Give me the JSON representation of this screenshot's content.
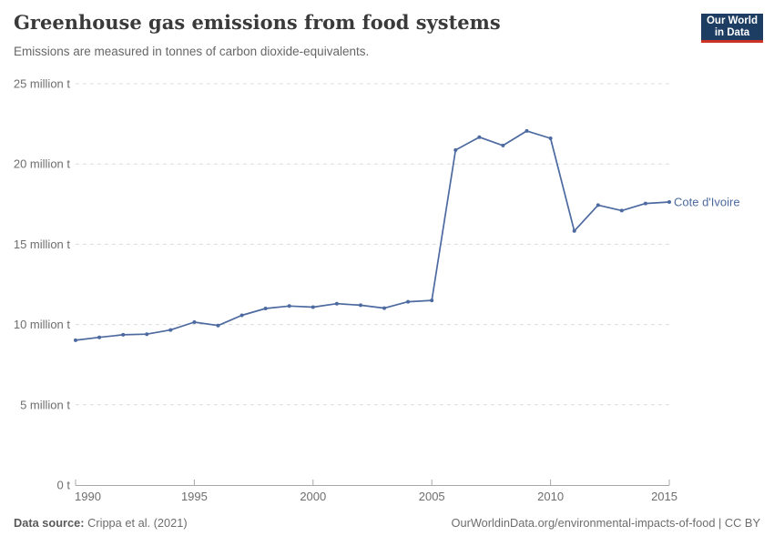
{
  "header": {
    "title": "Greenhouse gas emissions from food systems",
    "subtitle": "Emissions are measured in tonnes of carbon dioxide-equivalents.",
    "logo": {
      "line1": "Our World",
      "line2": "in Data",
      "bg_color": "#1d3d63",
      "accent_color": "#cd3226"
    }
  },
  "chart_data": {
    "type": "line",
    "title": "Greenhouse gas emissions from food systems",
    "xlabel": "",
    "ylabel": "",
    "unit": "tonnes of carbon dioxide-equivalents",
    "xlim": [
      1990,
      2015
    ],
    "ylim": [
      0,
      25
    ],
    "grid": "horizontal-dashed",
    "legend_position": "end-of-line-label",
    "xticks": [
      1990,
      1995,
      2000,
      2005,
      2010,
      2015
    ],
    "yticks": [
      {
        "value": 0,
        "label": "0 t"
      },
      {
        "value": 5,
        "label": "5 million t"
      },
      {
        "value": 10,
        "label": "10 million t"
      },
      {
        "value": 15,
        "label": "15 million t"
      },
      {
        "value": 20,
        "label": "20 million t"
      },
      {
        "value": 25,
        "label": "25 million t"
      }
    ],
    "series": [
      {
        "name": "Cote d'Ivoire",
        "color": "#4c69a0",
        "x": [
          1990,
          1991,
          1992,
          1993,
          1994,
          1995,
          1996,
          1997,
          1998,
          1999,
          2000,
          2001,
          2002,
          2003,
          2004,
          2005,
          2006,
          2007,
          2008,
          2009,
          2010,
          2011,
          2012,
          2013,
          2014,
          2015
        ],
        "values": [
          9.02,
          9.2,
          9.36,
          9.4,
          9.66,
          10.15,
          9.94,
          10.57,
          11.0,
          11.15,
          11.08,
          11.3,
          11.2,
          11.02,
          11.42,
          11.5,
          20.87,
          21.67,
          21.15,
          22.06,
          21.6,
          15.83,
          17.44,
          17.1,
          17.54,
          17.63
        ]
      }
    ]
  },
  "footer": {
    "source_prefix": "Data source:",
    "source": "Crippa et al. (2021)",
    "credit": "OurWorldinData.org/environmental-impacts-of-food | CC BY"
  },
  "colors": {
    "title_text": "#3a3a3a",
    "subtitle_text": "#666666",
    "tick_text": "#6e6e6e",
    "gridline": "#dcdcdc",
    "axis": "#a8a8a8",
    "series_line": "#4c69a0"
  }
}
